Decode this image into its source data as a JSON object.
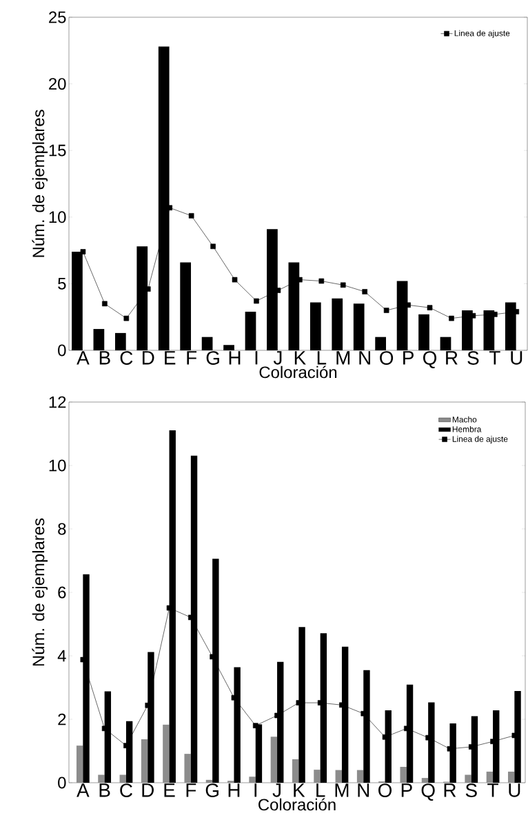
{
  "chart_data": [
    {
      "type": "bar",
      "xlabel": "Coloración",
      "ylabel": "Núm. de ejemplares",
      "categories": [
        "A",
        "B",
        "C",
        "D",
        "E",
        "F",
        "G",
        "H",
        "I",
        "J",
        "K",
        "L",
        "M",
        "N",
        "O",
        "P",
        "Q",
        "R",
        "S",
        "T",
        "U"
      ],
      "series": [
        {
          "color": "#000000",
          "values": [
            7.4,
            1.6,
            1.3,
            7.8,
            22.8,
            6.6,
            1.0,
            0.4,
            2.9,
            9.1,
            6.6,
            3.6,
            3.9,
            3.5,
            1.0,
            5.2,
            2.7,
            1.0,
            3.0,
            3.0,
            3.6
          ]
        },
        {
          "type": "line",
          "name": "Linea de ajuste",
          "color": "#000000",
          "marker": "square",
          "line_style": "solid",
          "values": [
            7.4,
            3.5,
            2.4,
            4.6,
            10.7,
            10.1,
            7.8,
            5.3,
            3.7,
            4.5,
            5.3,
            5.2,
            4.9,
            4.4,
            3.0,
            3.4,
            3.2,
            2.4,
            2.6,
            2.7,
            2.9
          ]
        }
      ],
      "ylim": [
        0,
        25
      ],
      "yticks": [
        0,
        5,
        10,
        15,
        20,
        25
      ],
      "grid": false,
      "legend": "top right"
    },
    {
      "type": "bar",
      "xlabel": "Coloración",
      "ylabel": "Núm. de ejemplares",
      "categories": [
        "A",
        "B",
        "C",
        "D",
        "E",
        "F",
        "G",
        "H",
        "I",
        "J",
        "K",
        "L",
        "M",
        "N",
        "O",
        "P",
        "Q",
        "R",
        "S",
        "T",
        "U"
      ],
      "series": [
        {
          "name": "Macho",
          "color": "#8c8c8c",
          "values": [
            1.17,
            0.25,
            0.25,
            1.37,
            1.83,
            0.91,
            0.09,
            0.06,
            0.19,
            1.45,
            0.74,
            0.41,
            0.4,
            0.4,
            0.04,
            0.5,
            0.15,
            0.03,
            0.25,
            0.35,
            0.35
          ]
        },
        {
          "name": "Hembra",
          "color": "#000000",
          "values": [
            6.57,
            2.88,
            1.94,
            4.12,
            11.11,
            10.31,
            7.06,
            3.64,
            1.84,
            3.81,
            4.91,
            4.71,
            4.29,
            3.55,
            2.28,
            3.09,
            2.53,
            1.87,
            2.1,
            2.28,
            2.89
          ]
        },
        {
          "type": "line",
          "name": "Linea de ajuste",
          "color": "#000000",
          "marker": "square",
          "line_style": "solid",
          "values": [
            3.88,
            1.71,
            1.17,
            2.44,
            5.51,
            5.21,
            3.97,
            2.68,
            1.8,
            2.12,
            2.52,
            2.52,
            2.45,
            2.18,
            1.44,
            1.71,
            1.42,
            1.07,
            1.13,
            1.3,
            1.49
          ]
        }
      ],
      "ylim": [
        0,
        12
      ],
      "yticks": [
        0,
        2,
        4,
        6,
        8,
        10,
        12
      ],
      "grid": false,
      "legend": "top right"
    }
  ]
}
